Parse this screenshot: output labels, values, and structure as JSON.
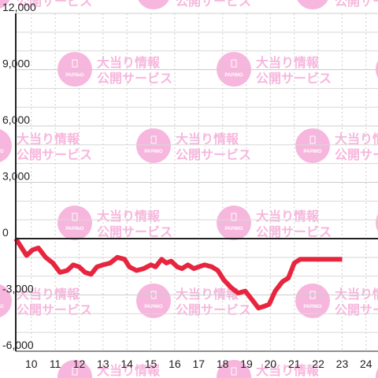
{
  "watermark": {
    "logo_text": "PAPIMO",
    "line1": "大当り情報",
    "line2": "公開サービス",
    "color": "#f7b6dd"
  },
  "chart_data": {
    "type": "line",
    "x": [
      9.35,
      9.55,
      9.8,
      10.05,
      10.3,
      10.6,
      10.9,
      11.2,
      11.5,
      11.75,
      12.0,
      12.25,
      12.5,
      12.75,
      13.0,
      13.3,
      13.6,
      13.9,
      14.1,
      14.4,
      14.7,
      15.0,
      15.2,
      15.45,
      15.65,
      15.85,
      16.1,
      16.3,
      16.55,
      16.8,
      17.0,
      17.25,
      17.55,
      17.8,
      18.05,
      18.35,
      18.65,
      18.95,
      19.2,
      19.5,
      19.75,
      19.95,
      20.2,
      20.5,
      20.75,
      21.0,
      21.25,
      21.45,
      21.7,
      21.9,
      22.1,
      22.4,
      22.7,
      23.0
    ],
    "values": [
      0,
      -400,
      -900,
      -600,
      -500,
      -1000,
      -1300,
      -1800,
      -1700,
      -1400,
      -1500,
      -1800,
      -1900,
      -1500,
      -1400,
      -1300,
      -1000,
      -1100,
      -1500,
      -1700,
      -1600,
      -1400,
      -1500,
      -1100,
      -1300,
      -1200,
      -1500,
      -1600,
      -1400,
      -1600,
      -1500,
      -1400,
      -1500,
      -1700,
      -2200,
      -2600,
      -2900,
      -2800,
      -3200,
      -3700,
      -3600,
      -3500,
      -2800,
      -2300,
      -2100,
      -1300,
      -1100,
      -1100,
      -1100,
      -1100,
      -1100,
      -1100,
      -1100,
      -1100
    ],
    "xlim": [
      9.35,
      24.5
    ],
    "ylim": [
      -6000,
      12000
    ],
    "x_ticks": [
      10,
      11,
      12,
      13,
      14,
      15,
      16,
      17,
      18,
      19,
      20,
      21,
      22,
      23,
      24
    ],
    "y_ticks": [
      -6000,
      -3000,
      0,
      3000,
      6000,
      9000,
      12000
    ],
    "x_tick_labels": [
      "10",
      "11",
      "12",
      "13",
      "14",
      "15",
      "16",
      "17",
      "18",
      "19",
      "20",
      "21",
      "22",
      "23",
      "24"
    ],
    "y_tick_labels": [
      "-6,000",
      "-3,000",
      "0",
      "3,000",
      "6,000",
      "9,000",
      "12,000"
    ],
    "grid": true,
    "line_color": "#e8253f",
    "axis_color": "#222222",
    "grid_color": "#cccccc",
    "minor_grid_color": "#d8d8d8",
    "title": "",
    "xlabel": "",
    "ylabel": ""
  }
}
